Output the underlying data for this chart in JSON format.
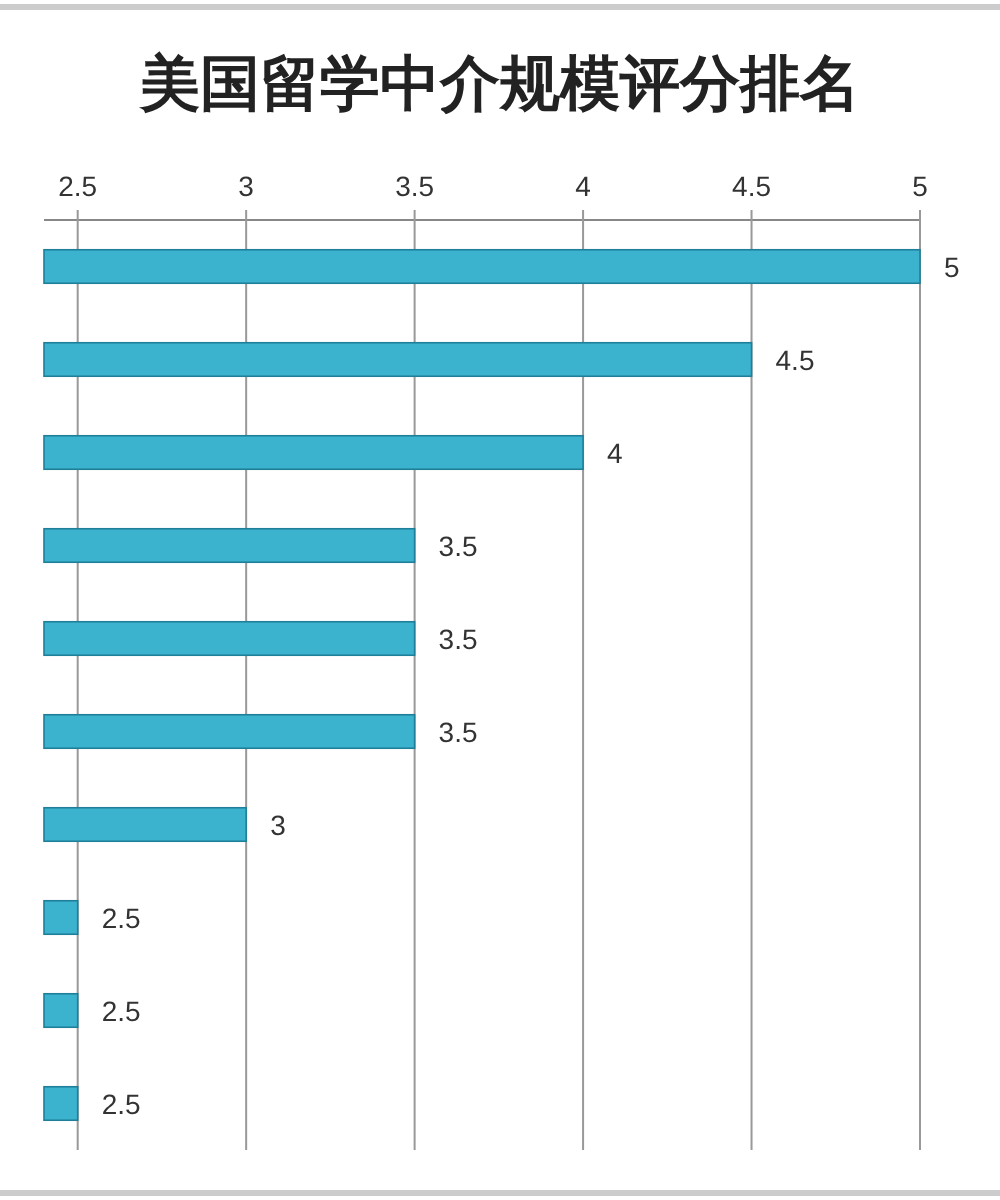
{
  "chart_data": {
    "type": "bar",
    "orientation": "horizontal",
    "title": "美国留学中介规模评分排名",
    "categories": [
      null,
      null,
      null,
      null,
      null,
      null,
      null,
      null,
      null,
      null
    ],
    "values": [
      5,
      4.5,
      4,
      3.5,
      3.5,
      3.5,
      3,
      2.5,
      2.5,
      2.5
    ],
    "color": "#3bb3cf",
    "xlim": [
      2.4,
      5
    ],
    "xticks": [
      2.5,
      3,
      3.5,
      4,
      4.5,
      5
    ],
    "grid": "x",
    "data_labels": true
  }
}
